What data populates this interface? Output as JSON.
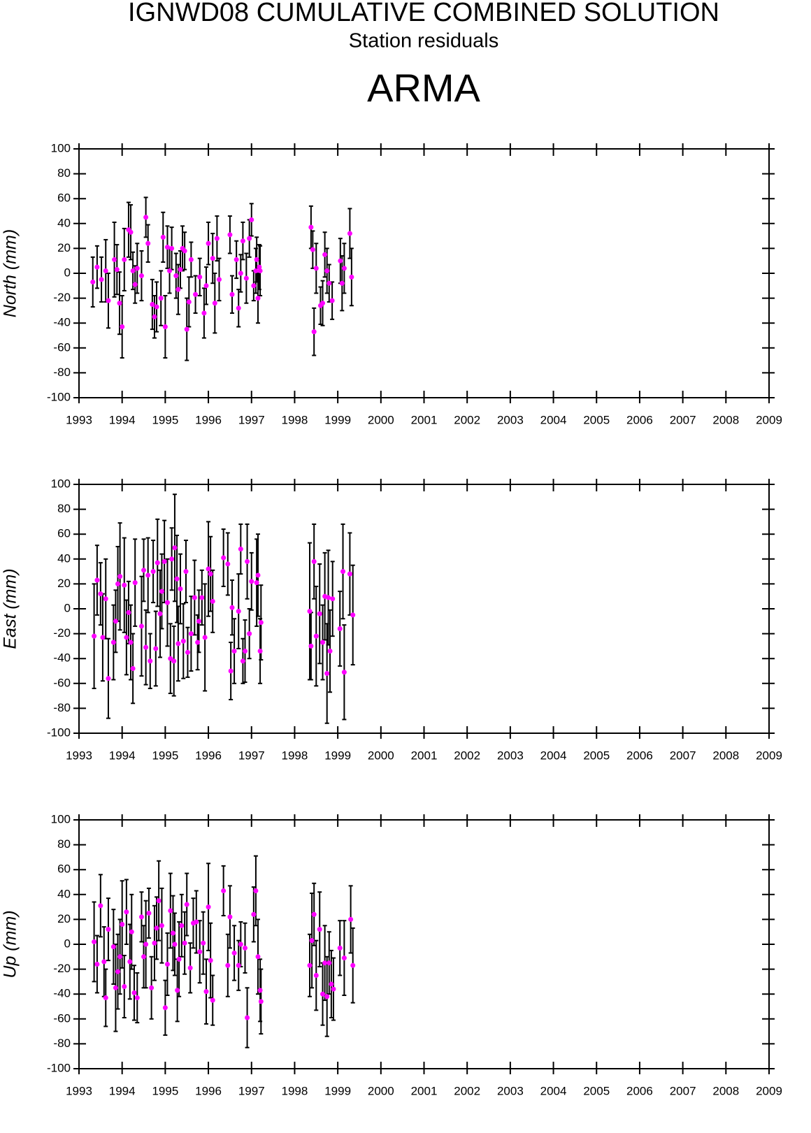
{
  "title": "IGNWD08 CUMULATIVE COMBINED SOLUTION",
  "subtitle": "Station residuals",
  "station": "ARMA",
  "chart_data": [
    {
      "type": "scatter",
      "ylabel": "North (mm)",
      "color": "#ff00ff",
      "bar_color": "#000000",
      "xlim": [
        1993,
        2009
      ],
      "xticks": [
        1993,
        1994,
        1995,
        1996,
        1997,
        1998,
        1999,
        2000,
        2001,
        2002,
        2003,
        2004,
        2005,
        2006,
        2007,
        2008,
        2009
      ],
      "ylim": [
        -100,
        100
      ],
      "yticks": [
        -100,
        -80,
        -60,
        -40,
        -20,
        0,
        20,
        40,
        60,
        80,
        100
      ],
      "x": [
        1993.32,
        1993.42,
        1993.52,
        1993.62,
        1993.68,
        1993.82,
        1993.88,
        1993.94,
        1994.0,
        1994.05,
        1994.15,
        1994.2,
        1994.25,
        1994.3,
        1994.35,
        1994.45,
        1994.55,
        1994.6,
        1994.7,
        1994.75,
        1994.8,
        1994.9,
        1994.95,
        1995.0,
        1995.05,
        1995.1,
        1995.15,
        1995.25,
        1995.3,
        1995.35,
        1995.4,
        1995.45,
        1995.5,
        1995.55,
        1995.6,
        1995.7,
        1995.8,
        1995.9,
        1995.95,
        1996.0,
        1996.1,
        1996.15,
        1996.2,
        1996.25,
        1996.5,
        1996.55,
        1996.65,
        1996.7,
        1996.75,
        1996.8,
        1996.88,
        1996.95,
        1997.0,
        1997.05,
        1997.1,
        1997.12,
        1997.15,
        1997.18,
        1997.2,
        1998.38,
        1998.42,
        1998.45,
        1998.5,
        1998.6,
        1998.65,
        1998.7,
        1998.75,
        1998.8,
        1998.87,
        1999.06,
        1999.1,
        1999.15,
        1999.28,
        1999.32
      ],
      "values": [
        -7,
        5,
        -5,
        2,
        -22,
        11,
        3,
        -24,
        -43,
        11,
        35,
        33,
        2,
        -9,
        4,
        -2,
        45,
        24,
        -25,
        -35,
        -27,
        -20,
        29,
        -43,
        21,
        2,
        20,
        -2,
        -13,
        3,
        20,
        18,
        -45,
        -23,
        11,
        -17,
        -3,
        -32,
        -10,
        24,
        12,
        -24,
        28,
        -5,
        31,
        -17,
        11,
        -28,
        0,
        26,
        -4,
        28,
        43,
        -10,
        2,
        11,
        -20,
        5,
        2,
        37,
        19,
        -47,
        4,
        -26,
        -24,
        15,
        2,
        -8,
        -22,
        10,
        -8,
        4,
        32,
        -3
      ],
      "errors": [
        20,
        17,
        18,
        25,
        22,
        30,
        20,
        25,
        25,
        25,
        22,
        22,
        15,
        15,
        20,
        20,
        16,
        15,
        20,
        17,
        20,
        22,
        20,
        25,
        17,
        18,
        17,
        18,
        20,
        15,
        18,
        15,
        25,
        20,
        14,
        15,
        15,
        20,
        15,
        17,
        20,
        24,
        18,
        17,
        15,
        15,
        15,
        15,
        15,
        15,
        20,
        15,
        13,
        12,
        18,
        18,
        20,
        18,
        20,
        17,
        15,
        19,
        20,
        15,
        18,
        18,
        18,
        15,
        15,
        18,
        22,
        20,
        20,
        23
      ]
    },
    {
      "type": "scatter",
      "ylabel": "East (mm)",
      "color": "#ff00ff",
      "bar_color": "#000000",
      "xlim": [
        1993,
        2009
      ],
      "xticks": [
        1993,
        1994,
        1995,
        1996,
        1997,
        1998,
        1999,
        2000,
        2001,
        2002,
        2003,
        2004,
        2005,
        2006,
        2007,
        2008,
        2009
      ],
      "ylim": [
        -100,
        100
      ],
      "yticks": [
        -100,
        -80,
        -60,
        -40,
        -20,
        0,
        20,
        40,
        60,
        80,
        100
      ],
      "x": [
        1993.35,
        1993.42,
        1993.5,
        1993.55,
        1993.62,
        1993.68,
        1993.8,
        1993.85,
        1993.9,
        1993.95,
        1994.05,
        1994.1,
        1994.15,
        1994.2,
        1994.25,
        1994.3,
        1994.45,
        1994.5,
        1994.55,
        1994.6,
        1994.65,
        1994.72,
        1994.78,
        1994.82,
        1994.88,
        1994.92,
        1994.98,
        1995.05,
        1995.12,
        1995.15,
        1995.2,
        1995.22,
        1995.27,
        1995.3,
        1995.35,
        1995.42,
        1995.48,
        1995.52,
        1995.6,
        1995.68,
        1995.75,
        1995.78,
        1995.85,
        1995.92,
        1996.0,
        1996.05,
        1996.1,
        1996.35,
        1996.45,
        1996.52,
        1996.55,
        1996.6,
        1996.7,
        1996.75,
        1996.8,
        1996.85,
        1996.9,
        1996.95,
        1997.0,
        1997.12,
        1997.15,
        1997.2,
        1997.22,
        1998.35,
        1998.38,
        1998.45,
        1998.5,
        1998.58,
        1998.65,
        1998.7,
        1998.75,
        1998.78,
        1998.82,
        1998.88,
        1999.05,
        1999.12,
        1999.15,
        1999.28,
        1999.35
      ],
      "values": [
        -22,
        23,
        12,
        -23,
        8,
        -56,
        -27,
        -10,
        20,
        26,
        19,
        -23,
        -3,
        -27,
        -48,
        21,
        -14,
        31,
        -31,
        27,
        -42,
        30,
        -32,
        37,
        -4,
        14,
        38,
        5,
        -40,
        40,
        -42,
        49,
        24,
        -28,
        16,
        -26,
        30,
        -35,
        -20,
        9,
        -27,
        -10,
        9,
        -23,
        32,
        28,
        6,
        41,
        36,
        -50,
        1,
        -34,
        -2,
        48,
        -42,
        -34,
        38,
        -20,
        22,
        21,
        27,
        -34,
        -11,
        -2,
        -30,
        38,
        -22,
        -4,
        -27,
        10,
        -52,
        9,
        -34,
        8,
        -16,
        30,
        -51,
        28,
        -5
      ],
      "errors": [
        42,
        28,
        25,
        35,
        32,
        32,
        30,
        25,
        30,
        43,
        38,
        30,
        25,
        30,
        28,
        35,
        40,
        25,
        30,
        30,
        22,
        25,
        30,
        35,
        35,
        30,
        33,
        35,
        28,
        25,
        28,
        43,
        35,
        30,
        28,
        30,
        25,
        20,
        30,
        30,
        22,
        25,
        22,
        43,
        38,
        30,
        25,
        23,
        25,
        23,
        22,
        26,
        30,
        20,
        18,
        25,
        30,
        20,
        23,
        35,
        33,
        26,
        30,
        55,
        27,
        30,
        40,
        40,
        30,
        35,
        40,
        38,
        33,
        30,
        30,
        38,
        38,
        33,
        40
      ]
    },
    {
      "type": "scatter",
      "ylabel": "Up (mm)",
      "color": "#ff00ff",
      "bar_color": "#000000",
      "xlim": [
        1993,
        2009
      ],
      "xticks": [
        1993,
        1994,
        1995,
        1996,
        1997,
        1998,
        1999,
        2000,
        2001,
        2002,
        2003,
        2004,
        2005,
        2006,
        2007,
        2008,
        2009
      ],
      "ylim": [
        -100,
        100
      ],
      "yticks": [
        -100,
        -80,
        -60,
        -40,
        -20,
        0,
        20,
        40,
        60,
        80,
        100
      ],
      "x": [
        1993.35,
        1993.42,
        1993.5,
        1993.58,
        1993.62,
        1993.68,
        1993.8,
        1993.85,
        1993.9,
        1993.95,
        1994.0,
        1994.05,
        1994.1,
        1994.18,
        1994.22,
        1994.28,
        1994.35,
        1994.45,
        1994.5,
        1994.55,
        1994.62,
        1994.68,
        1994.75,
        1994.8,
        1994.85,
        1994.92,
        1995.0,
        1995.05,
        1995.12,
        1995.18,
        1995.22,
        1995.28,
        1995.32,
        1995.38,
        1995.45,
        1995.5,
        1995.58,
        1995.65,
        1995.72,
        1995.8,
        1995.88,
        1995.95,
        1996.0,
        1996.05,
        1996.1,
        1996.35,
        1996.45,
        1996.5,
        1996.6,
        1996.7,
        1996.75,
        1996.85,
        1996.9,
        1997.05,
        1997.1,
        1997.15,
        1997.2,
        1997.22,
        1998.35,
        1998.4,
        1998.45,
        1998.5,
        1998.58,
        1998.65,
        1998.7,
        1998.75,
        1998.8,
        1998.85,
        1998.9,
        1999.05,
        1999.15,
        1999.3,
        1999.35
      ],
      "values": [
        2,
        -16,
        31,
        -14,
        -43,
        12,
        -2,
        -35,
        -22,
        -10,
        16,
        -34,
        26,
        -14,
        10,
        -39,
        -43,
        22,
        -10,
        0,
        25,
        -35,
        1,
        13,
        35,
        15,
        -51,
        -16,
        27,
        9,
        0,
        -37,
        -12,
        15,
        1,
        32,
        -19,
        17,
        18,
        -6,
        1,
        -38,
        30,
        -13,
        -45,
        43,
        -17,
        22,
        -7,
        -17,
        0,
        -3,
        -59,
        24,
        43,
        -10,
        -37,
        -46,
        -17,
        3,
        24,
        -25,
        12,
        -40,
        -15,
        -42,
        -15,
        -32,
        -36,
        -3,
        -11,
        20,
        -17
      ],
      "errors": [
        32,
        23,
        25,
        28,
        23,
        25,
        30,
        35,
        30,
        30,
        35,
        25,
        26,
        30,
        30,
        22,
        20,
        20,
        25,
        35,
        20,
        25,
        30,
        25,
        32,
        30,
        22,
        25,
        30,
        30,
        25,
        25,
        30,
        25,
        25,
        25,
        20,
        20,
        25,
        25,
        25,
        26,
        35,
        30,
        20,
        20,
        25,
        25,
        22,
        20,
        18,
        20,
        24,
        22,
        28,
        30,
        25,
        26,
        25,
        38,
        25,
        28,
        30,
        25,
        30,
        32,
        25,
        27,
        25,
        22,
        30,
        27,
        30
      ]
    }
  ]
}
